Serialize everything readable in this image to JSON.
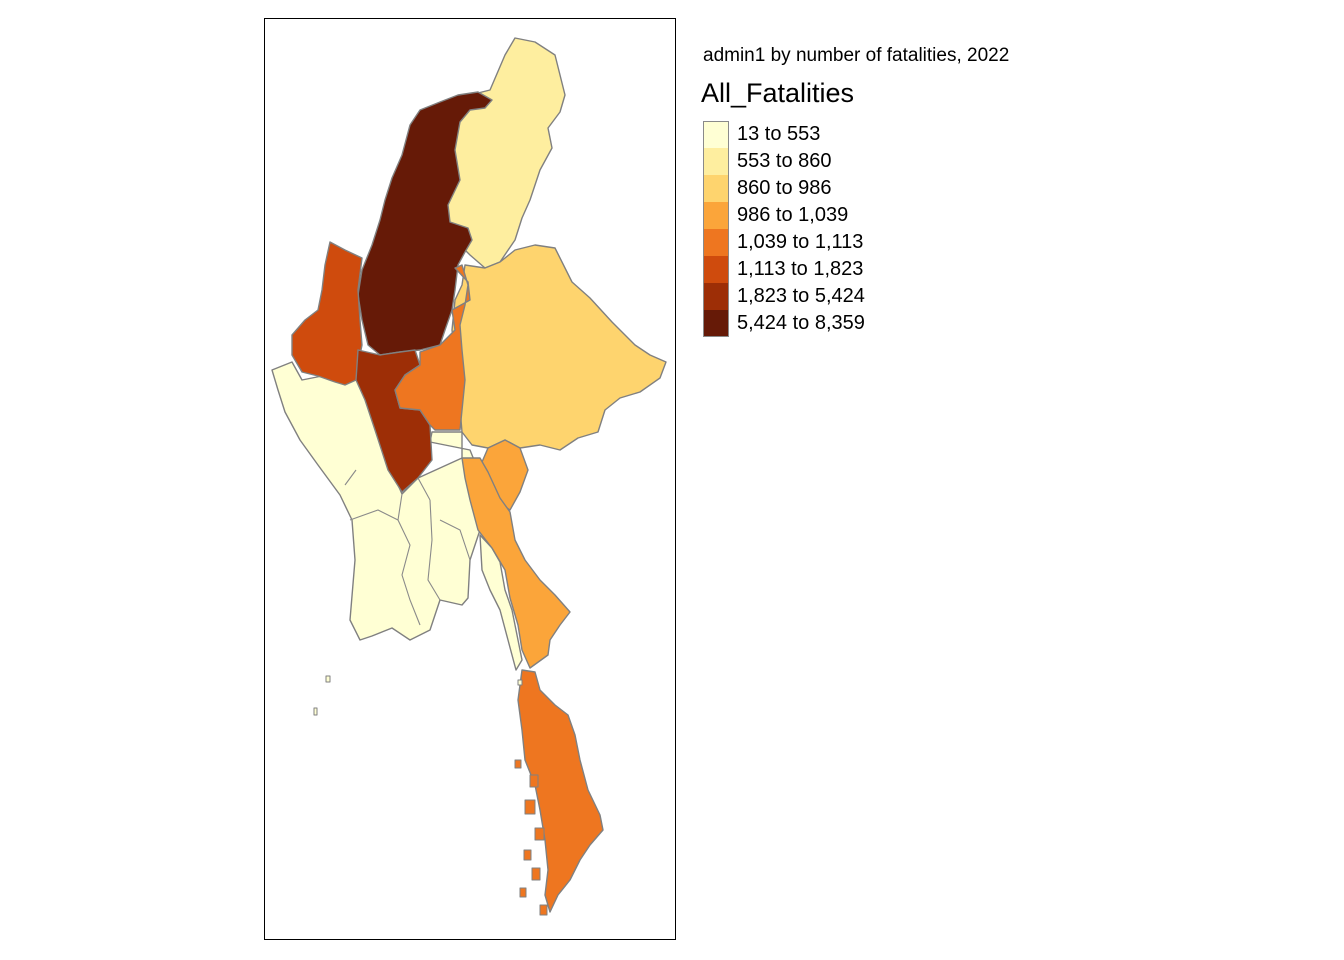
{
  "map": {
    "subtitle": "admin1 by number of fatalities, 2022",
    "legend_title": "All_Fatalities",
    "variable": "All_Fatalities",
    "year": "2022",
    "classes": [
      {
        "label": "13 to 553",
        "color": "#FFFFD4"
      },
      {
        "label": "553 to 860",
        "color": "#FEEE9F"
      },
      {
        "label": "860 to 986",
        "color": "#FED46E"
      },
      {
        "label": "986 to 1,039",
        "color": "#FBA53A"
      },
      {
        "label": "1,039 to 1,113",
        "color": "#EE7620"
      },
      {
        "label": "1,113 to 1,823",
        "color": "#CF4B0D"
      },
      {
        "label": "1,823 to 5,424",
        "color": "#9D2E06"
      },
      {
        "label": "5,424 to 8,359",
        "color": "#661A07"
      }
    ],
    "border_color": "#808080"
  }
}
